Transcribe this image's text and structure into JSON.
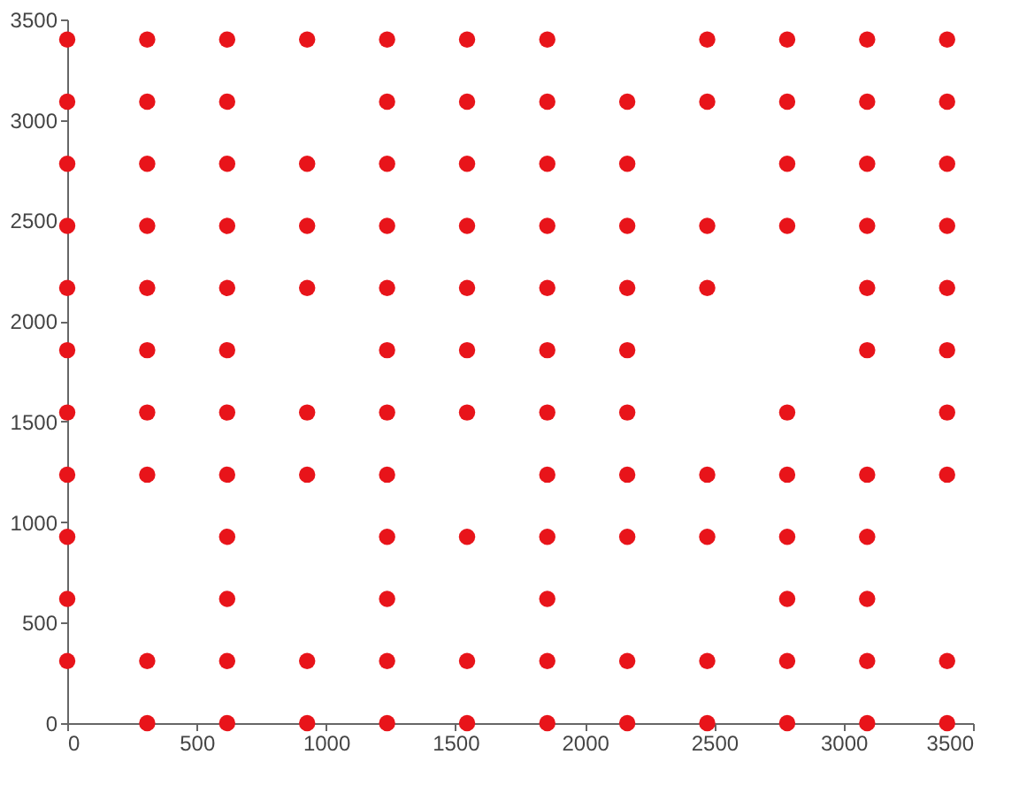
{
  "chart_data": {
    "type": "scatter",
    "marker": "circle",
    "grid": false,
    "xlim": [
      0,
      3500
    ],
    "ylim": [
      0,
      3500
    ],
    "xticks": [
      0,
      500,
      1000,
      1500,
      2000,
      2500,
      3000,
      3500
    ],
    "yticks": [
      0,
      500,
      1000,
      1500,
      2000,
      2500,
      3000,
      3500
    ],
    "series": [
      {
        "color": "#e8141a",
        "x": [
          0,
          309,
          618,
          927,
          1236,
          1545,
          1855,
          2473,
          2782,
          3091,
          3400,
          0,
          309,
          618,
          1236,
          1545,
          1855,
          2164,
          2473,
          2782,
          3091,
          3400,
          0,
          309,
          618,
          927,
          1236,
          1545,
          1855,
          2164,
          2782,
          3091,
          3400,
          0,
          309,
          618,
          927,
          1236,
          1545,
          1855,
          2164,
          2473,
          2782,
          3091,
          3400,
          0,
          309,
          618,
          927,
          1236,
          1545,
          1855,
          2164,
          2473,
          3091,
          3400,
          0,
          309,
          618,
          1236,
          1545,
          1855,
          2164,
          3091,
          3400,
          0,
          309,
          618,
          927,
          1236,
          1545,
          1855,
          2164,
          2782,
          3400,
          0,
          309,
          618,
          927,
          1236,
          1855,
          2164,
          2473,
          2782,
          3091,
          3400,
          0,
          618,
          1236,
          1545,
          1855,
          2164,
          2473,
          2782,
          3091,
          0,
          618,
          1236,
          1855,
          2782,
          3091,
          0,
          309,
          618,
          927,
          1236,
          1545,
          1855,
          2164,
          2473,
          2782,
          3091,
          3400,
          309,
          618,
          927,
          1236,
          1545,
          1855,
          2164,
          2473,
          2782,
          3091,
          3400
        ],
        "values": [
          3400,
          3400,
          3400,
          3400,
          3400,
          3400,
          3400,
          3400,
          3400,
          3400,
          3400,
          3091,
          3091,
          3091,
          3091,
          3091,
          3091,
          3091,
          3091,
          3091,
          3091,
          3091,
          2782,
          2782,
          2782,
          2782,
          2782,
          2782,
          2782,
          2782,
          2782,
          2782,
          2782,
          2473,
          2473,
          2473,
          2473,
          2473,
          2473,
          2473,
          2473,
          2473,
          2473,
          2473,
          2473,
          2164,
          2164,
          2164,
          2164,
          2164,
          2164,
          2164,
          2164,
          2164,
          2164,
          2164,
          1855,
          1855,
          1855,
          1855,
          1855,
          1855,
          1855,
          1855,
          1855,
          1545,
          1545,
          1545,
          1545,
          1545,
          1545,
          1545,
          1545,
          1545,
          1545,
          1236,
          1236,
          1236,
          1236,
          1236,
          1236,
          1236,
          1236,
          1236,
          1236,
          1236,
          927,
          927,
          927,
          927,
          927,
          927,
          927,
          927,
          927,
          618,
          618,
          618,
          618,
          618,
          618,
          309,
          309,
          309,
          309,
          309,
          309,
          309,
          309,
          309,
          309,
          309,
          309,
          0,
          0,
          0,
          0,
          0,
          0,
          0,
          0,
          0,
          0,
          0
        ]
      }
    ]
  }
}
